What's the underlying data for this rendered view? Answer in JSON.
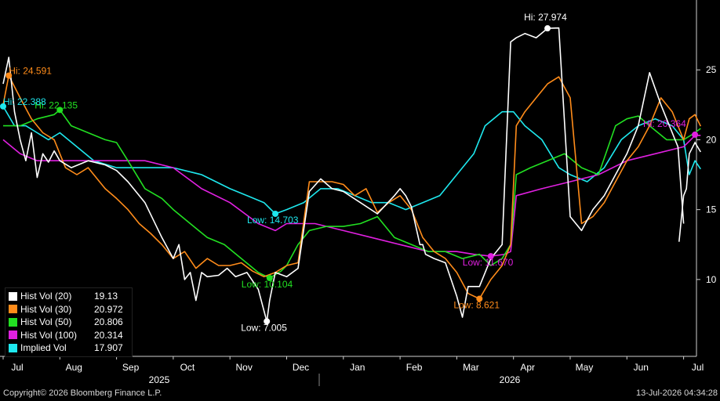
{
  "chart_data": {
    "type": "line",
    "y_axis": {
      "position": "right",
      "range": [
        4.5,
        30
      ],
      "ticks": [
        10,
        15,
        20,
        25
      ]
    },
    "x_axis": {
      "months": [
        "Jul",
        "Aug",
        "Sep",
        "Oct",
        "Nov",
        "Dec",
        "Jan",
        "Feb",
        "Mar",
        "Apr",
        "May",
        "Jun",
        "Jul"
      ],
      "years": [
        "2025",
        "2026"
      ]
    },
    "series": [
      {
        "name": "Hist Vol (20)",
        "color": "#ffffff",
        "last": "19.13",
        "x": [
          0.0,
          0.1,
          0.2,
          0.3,
          0.4,
          0.5,
          0.6,
          0.7,
          0.8,
          0.9,
          1.0,
          1.2,
          1.5,
          1.8,
          2.0,
          2.2,
          2.5,
          2.8,
          3.0,
          3.1,
          3.2,
          3.3,
          3.4,
          3.5,
          3.6,
          3.8,
          3.95,
          4.1,
          4.3,
          4.5,
          4.65,
          4.7,
          4.8,
          5.0,
          5.2,
          5.4,
          5.6,
          5.8,
          6.0,
          6.3,
          6.6,
          6.9,
          7.0,
          7.1,
          7.2,
          7.35,
          7.4,
          7.45,
          7.6,
          7.8,
          8.0,
          8.1,
          8.2,
          8.4,
          8.6,
          8.8,
          8.95,
          9.05,
          9.2,
          9.4,
          9.6,
          9.8,
          10.0,
          10.2,
          10.4,
          10.6,
          10.8,
          11.0,
          11.2,
          11.4,
          11.6,
          11.75,
          11.9,
          12.0
        ],
        "y": [
          24,
          25.9,
          22,
          20,
          18.5,
          20.5,
          17.3,
          19,
          18.4,
          19.2,
          18.5,
          18,
          18.5,
          18.2,
          17.8,
          17,
          15.5,
          13,
          11.5,
          12.5,
          10,
          10.5,
          8.5,
          10.5,
          10.2,
          10.3,
          10.8,
          10.2,
          10.5,
          9.3,
          7.0,
          8.5,
          10.5,
          10.2,
          10.8,
          16.3,
          17.2,
          16.5,
          16.3,
          15.5,
          14.7,
          16,
          16.5,
          16,
          15.2,
          12.5,
          12.5,
          11.8,
          11.5,
          11.2,
          8.8,
          7.3,
          9.5,
          9.5,
          11.5,
          12.5,
          27,
          27.3,
          27.6,
          27.3,
          27.97,
          28.0,
          14.5,
          13.5,
          15.0,
          16.0,
          17.5,
          19.0,
          21.0,
          24.8,
          22.5,
          21.0,
          19.5,
          14.0
        ],
        "extra": {
          "x": [
            11.92,
            12.0,
            12.05,
            12.1,
            12.2,
            12.3
          ],
          "y": [
            12.7,
            16.0,
            16.5,
            19.0,
            19.8,
            19.13
          ]
        },
        "annotations": [
          {
            "label": "Hi: 27.974",
            "x": 9.6,
            "y": 27.974,
            "dx": -30,
            "dy": -10
          },
          {
            "label": "Low: 7.005",
            "x": 4.65,
            "y": 7.005,
            "dx": -33,
            "dy": 12
          }
        ]
      },
      {
        "name": "Hist Vol (30)",
        "color": "#ff8c1a",
        "last": "20.972",
        "x": [
          0.0,
          0.1,
          0.3,
          0.5,
          0.7,
          0.9,
          1.1,
          1.3,
          1.5,
          1.8,
          2.0,
          2.2,
          2.4,
          2.6,
          2.8,
          3.0,
          3.2,
          3.4,
          3.6,
          3.8,
          4.0,
          4.2,
          4.4,
          4.6,
          4.8,
          5.0,
          5.2,
          5.4,
          5.6,
          5.8,
          6.0,
          6.2,
          6.4,
          6.6,
          6.8,
          7.0,
          7.2,
          7.4,
          7.6,
          7.8,
          8.0,
          8.2,
          8.4,
          8.6,
          8.8,
          8.95,
          9.05,
          9.2,
          9.4,
          9.6,
          9.8,
          10.0,
          10.2,
          10.4,
          10.6,
          10.8,
          11.0,
          11.2,
          11.4,
          11.6,
          11.8,
          12.0,
          12.1,
          12.2,
          12.3
        ],
        "y": [
          22.5,
          24.59,
          23.0,
          21.5,
          20.5,
          20.0,
          18.0,
          17.5,
          18.0,
          16.5,
          15.8,
          15.0,
          14.0,
          13.3,
          12.5,
          11.5,
          12.0,
          10.8,
          11.5,
          11.0,
          11.0,
          11.2,
          10.6,
          10.2,
          10.5,
          11.0,
          11.2,
          17.0,
          17.0,
          17.0,
          16.8,
          16.0,
          16.5,
          14.8,
          15.5,
          16.0,
          15.0,
          13.0,
          12.0,
          11.5,
          10.5,
          9.0,
          8.621,
          10.0,
          11.0,
          12.5,
          21.0,
          22.0,
          23.0,
          24.0,
          24.5,
          23.0,
          14.0,
          14.5,
          15.5,
          17.0,
          18.5,
          19.5,
          21.0,
          23.0,
          22.0,
          20.0,
          21.5,
          21.8,
          20.972
        ],
        "annotations": [
          {
            "label": "Hi: 24.591",
            "x": 0.1,
            "y": 24.591,
            "dx": 0,
            "dy": -2
          },
          {
            "label": "Low: 8.621",
            "x": 8.4,
            "y": 8.621,
            "dx": -33,
            "dy": 12
          }
        ]
      },
      {
        "name": "Hist Vol (50)",
        "color": "#22e022",
        "last": "20.806",
        "x": [
          0.0,
          0.3,
          0.6,
          0.9,
          1.0,
          1.2,
          1.5,
          1.8,
          2.0,
          2.2,
          2.5,
          2.8,
          3.0,
          3.3,
          3.6,
          3.9,
          4.2,
          4.5,
          4.7,
          4.9,
          5.0,
          5.2,
          5.4,
          5.7,
          6.0,
          6.3,
          6.6,
          6.9,
          7.2,
          7.5,
          7.8,
          8.1,
          8.4,
          8.6,
          8.8,
          8.95,
          9.05,
          9.3,
          9.6,
          9.9,
          10.2,
          10.5,
          10.8,
          11.0,
          11.2,
          11.4,
          11.7,
          12.0,
          12.2,
          12.3
        ],
        "y": [
          21.0,
          21.0,
          21.5,
          21.8,
          22.135,
          21.0,
          20.5,
          20.0,
          19.8,
          18.5,
          16.5,
          15.8,
          15.0,
          14.0,
          13.0,
          12.5,
          11.5,
          10.5,
          10.104,
          10.6,
          11.0,
          12.5,
          13.5,
          13.8,
          13.8,
          14.0,
          14.5,
          13.0,
          12.5,
          12.0,
          12.0,
          11.5,
          11.8,
          11.0,
          11.5,
          12.5,
          17.5,
          18.0,
          18.5,
          19.0,
          18.0,
          17.5,
          21.0,
          21.5,
          21.7,
          21.0,
          20.0,
          20.0,
          20.5,
          20.806
        ],
        "annotations": [
          {
            "label": "Hi: 22.135",
            "x": 1.0,
            "y": 22.135,
            "dx": -32,
            "dy": -2
          },
          {
            "label": "Low: 10.104",
            "x": 4.7,
            "y": 10.104,
            "dx": -36,
            "dy": 12
          }
        ]
      },
      {
        "name": "Hist Vol (100)",
        "color": "#e020e0",
        "last": "20.314",
        "x": [
          0.0,
          0.3,
          0.6,
          1.0,
          1.5,
          2.0,
          2.5,
          3.0,
          3.5,
          4.0,
          4.5,
          4.8,
          5.0,
          5.5,
          6.0,
          6.5,
          7.0,
          7.5,
          8.0,
          8.3,
          8.6,
          8.85,
          8.95,
          9.05,
          9.5,
          10.0,
          10.5,
          11.0,
          11.5,
          12.0,
          12.2,
          12.3
        ],
        "y": [
          20.0,
          19.0,
          18.5,
          18.5,
          18.5,
          18.5,
          18.5,
          18.0,
          16.5,
          15.5,
          14.0,
          13.5,
          14.0,
          14.0,
          13.5,
          13.0,
          12.5,
          12.0,
          12.0,
          11.8,
          11.67,
          11.8,
          12.0,
          16.0,
          16.5,
          17.0,
          17.5,
          18.5,
          19.0,
          19.5,
          20.3,
          20.314
        ],
        "annotations": [
          {
            "label": "Hi: 20.364",
            "x": 12.2,
            "y": 20.364,
            "dx": -66,
            "dy": -10
          },
          {
            "label": "Low: 11.670",
            "x": 8.6,
            "y": 11.67,
            "dx": -36,
            "dy": 12
          }
        ]
      },
      {
        "name": "Implied Vol",
        "color": "#1ee8ee",
        "last": "17.907",
        "x": [
          0.0,
          0.2,
          0.4,
          0.6,
          0.8,
          1.0,
          1.3,
          1.6,
          2.0,
          2.5,
          3.0,
          3.5,
          4.0,
          4.3,
          4.6,
          4.8,
          5.0,
          5.3,
          5.6,
          5.9,
          6.2,
          6.5,
          6.8,
          7.1,
          7.4,
          7.7,
          8.0,
          8.3,
          8.5,
          8.8,
          9.0,
          9.2,
          9.5,
          9.8,
          10.0,
          10.3,
          10.6,
          10.9,
          11.2,
          11.5,
          11.8,
          12.0,
          12.1,
          12.2,
          12.3
        ],
        "y": [
          22.388,
          21.0,
          21.0,
          20.5,
          20.0,
          20.5,
          19.5,
          18.5,
          18.0,
          18.0,
          18.0,
          17.5,
          16.5,
          16.0,
          15.5,
          14.7,
          15.0,
          15.5,
          16.5,
          16.5,
          16.0,
          15.5,
          15.5,
          15.0,
          15.5,
          16.0,
          17.5,
          19.0,
          21.0,
          22.0,
          22.0,
          21.0,
          20.0,
          18.0,
          17.5,
          17.0,
          18.0,
          20.0,
          21.0,
          21.5,
          21.0,
          20.0,
          17.5,
          18.5,
          17.907
        ],
        "annotations": [
          {
            "label": "Hi: 22.388",
            "x": 0.0,
            "y": 22.388,
            "dx": 0,
            "dy": -2
          },
          {
            "label": "Low: 14.703",
            "x": 4.8,
            "y": 14.703,
            "dx": -36,
            "dy": 12
          }
        ]
      }
    ]
  },
  "footer": {
    "copyright": "Copyright© 2026 Bloomberg Finance L.P.",
    "timestamp": "13-Jul-2026 04:34:28"
  }
}
